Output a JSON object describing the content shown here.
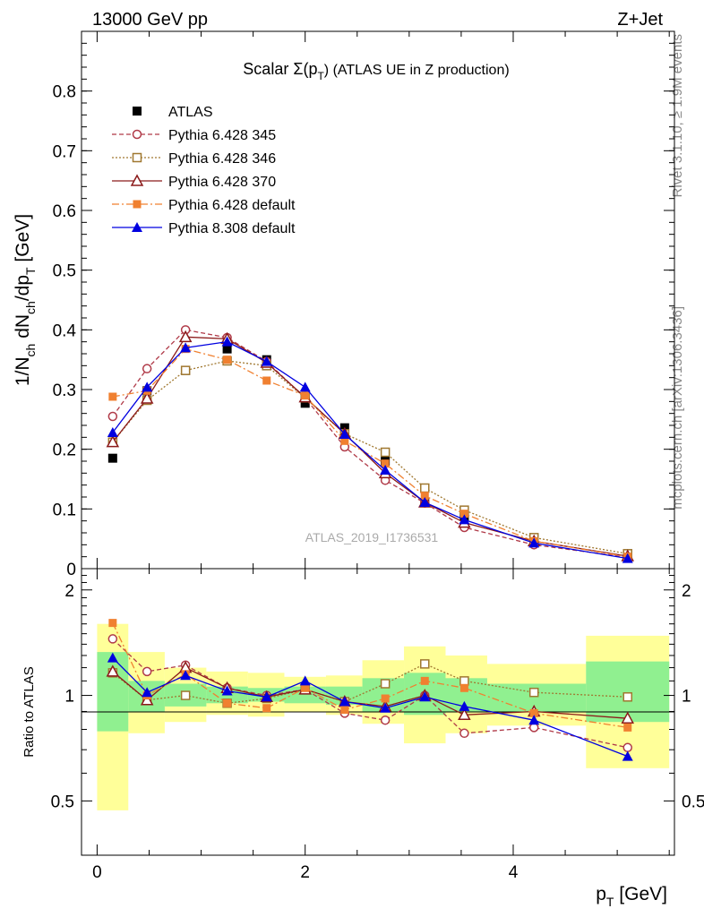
{
  "header": {
    "left": "13000 GeV pp",
    "right": "Z+Jet"
  },
  "side_texts": {
    "rivet": "Rivet 3.1.10, ≥ 1.9M events",
    "mcplots": "mcplots.cern.ch [arXiv:1306.3436]"
  },
  "colors": {
    "ATLAS": "#000000",
    "Pythia 6.428 345": "#b03a48",
    "Pythia 6.428 346": "#a07830",
    "Pythia 6.428 370": "#8b1a1a",
    "Pythia 6.428 default": "#f08030",
    "Pythia 8.308 default": "#0000e0",
    "band_inner": "#90f090",
    "band_outer": "#ffff99"
  },
  "chart_data": {
    "type": "line",
    "title": "Scalar Σ(p_T) (ATLAS UE in Z production)",
    "title_parts": {
      "main": "Scalar Σ(p",
      "sub": "T",
      "tail": ") (ATLAS UE in Z production)"
    },
    "watermark": "ATLAS_2019_I1736531",
    "xlabel": "p_T [GeV]",
    "xlabel_parts": {
      "main": "p",
      "sub": "T",
      "tail": " [GeV]"
    },
    "ylabel": "1/N_ch dN_ch/dp_T [GeV]",
    "ylabel_parts": [
      {
        "t": "1/N",
        "sub": false
      },
      {
        "t": "ch",
        "sub": true
      },
      {
        "t": " dN",
        "sub": false
      },
      {
        "t": "ch",
        "sub": true
      },
      {
        "t": "/dp",
        "sub": false
      },
      {
        "t": "T",
        "sub": true
      },
      {
        "t": " [GeV]",
        "sub": false
      }
    ],
    "ratio_ylabel": "Ratio to ATLAS",
    "xlim": [
      -0.15,
      5.55
    ],
    "ylim": [
      0,
      0.9
    ],
    "ratio_ylim": [
      0.35,
      2.3
    ],
    "x_ticks": [
      "0",
      "2",
      "4"
    ],
    "y_ticks": [
      "0",
      "0.1",
      "0.2",
      "0.3",
      "0.4",
      "0.5",
      "0.6",
      "0.7",
      "0.8"
    ],
    "ratio_ticks": [
      "0.5",
      "1",
      "2"
    ],
    "legend_position": "top-left",
    "x": [
      0.15,
      0.48,
      0.85,
      1.25,
      1.63,
      2.0,
      2.38,
      2.77,
      3.15,
      3.53,
      4.2,
      5.1
    ],
    "bin_edges": [
      0,
      0.3,
      0.65,
      1.05,
      1.45,
      1.8,
      2.2,
      2.55,
      2.95,
      3.35,
      3.75,
      4.7,
      5.5
    ],
    "ratio_band_inner": [
      [
        0.79,
        1.33
      ],
      [
        0.9,
        1.1
      ],
      [
        0.93,
        1.08
      ],
      [
        0.95,
        1.06
      ],
      [
        0.96,
        1.05
      ],
      [
        0.95,
        1.06
      ],
      [
        0.94,
        1.06
      ],
      [
        0.9,
        1.12
      ],
      [
        0.88,
        1.16
      ],
      [
        0.9,
        1.12
      ],
      [
        0.9,
        1.08
      ],
      [
        0.84,
        1.25
      ]
    ],
    "ratio_band_outer": [
      [
        0.47,
        1.6
      ],
      [
        0.78,
        1.33
      ],
      [
        0.84,
        1.2
      ],
      [
        0.88,
        1.17
      ],
      [
        0.87,
        1.16
      ],
      [
        0.9,
        1.13
      ],
      [
        0.88,
        1.14
      ],
      [
        0.83,
        1.26
      ],
      [
        0.73,
        1.38
      ],
      [
        0.78,
        1.3
      ],
      [
        0.82,
        1.23
      ],
      [
        0.62,
        1.48
      ]
    ],
    "series": [
      {
        "name": "ATLAS",
        "values": [
          0.185,
          0.298,
          0.332,
          0.368,
          0.35,
          0.277,
          0.236,
          0.18,
          0.111,
          0.088,
          0.051,
          0.025
        ]
      },
      {
        "name": "Pythia 6.428 345",
        "values": [
          0.255,
          0.335,
          0.4,
          0.387,
          0.347,
          0.286,
          0.204,
          0.148,
          0.11,
          0.069,
          0.04,
          0.019
        ]
      },
      {
        "name": "Pythia 6.428 346",
        "values": [
          0.212,
          0.282,
          0.332,
          0.348,
          0.34,
          0.286,
          0.226,
          0.195,
          0.135,
          0.098,
          0.052,
          0.025
        ]
      },
      {
        "name": "Pythia 6.428 370",
        "values": [
          0.212,
          0.285,
          0.388,
          0.385,
          0.345,
          0.287,
          0.226,
          0.16,
          0.111,
          0.077,
          0.046,
          0.021
        ]
      },
      {
        "name": "Pythia 6.428 default",
        "values": [
          0.288,
          0.298,
          0.368,
          0.35,
          0.315,
          0.29,
          0.214,
          0.176,
          0.122,
          0.092,
          0.046,
          0.02
        ]
      },
      {
        "name": "Pythia 8.308 default",
        "values": [
          0.228,
          0.304,
          0.37,
          0.38,
          0.347,
          0.304,
          0.225,
          0.165,
          0.111,
          0.082,
          0.043,
          0.017
        ]
      }
    ],
    "ratio_series": [
      {
        "name": "Pythia 6.428 345",
        "values": [
          1.45,
          1.17,
          1.22,
          1.05,
          1.0,
          1.04,
          0.89,
          0.85,
          1.0,
          0.78,
          0.81,
          0.71
        ]
      },
      {
        "name": "Pythia 6.428 346",
        "values": [
          1.16,
          0.97,
          1.0,
          0.95,
          0.98,
          1.04,
          0.96,
          1.08,
          1.23,
          1.1,
          1.02,
          0.99
        ]
      },
      {
        "name": "Pythia 6.428 370",
        "values": [
          1.17,
          0.97,
          1.2,
          1.05,
          0.99,
          1.04,
          0.96,
          0.93,
          1.0,
          0.88,
          0.9,
          0.86
        ]
      },
      {
        "name": "Pythia 6.428 default",
        "values": [
          1.61,
          1.0,
          1.15,
          0.95,
          0.92,
          1.05,
          0.91,
          0.98,
          1.1,
          1.05,
          0.89,
          0.81
        ]
      },
      {
        "name": "Pythia 8.308 default",
        "values": [
          1.28,
          1.02,
          1.14,
          1.03,
          0.99,
          1.1,
          0.96,
          0.92,
          0.99,
          0.93,
          0.85,
          0.67
        ]
      }
    ]
  }
}
